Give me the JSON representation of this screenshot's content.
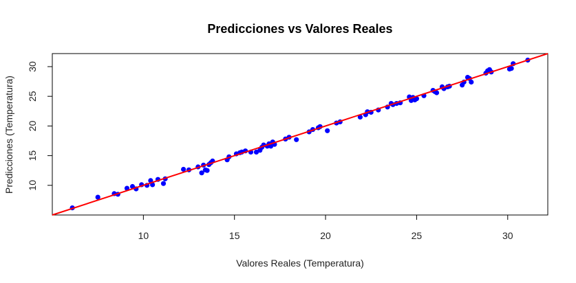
{
  "chart_data": {
    "type": "scatter",
    "title": "Predicciones vs Valores Reales",
    "xlabel": "Valores Reales (Temperatura)",
    "ylabel": "Predicciones (Temperatura)",
    "xlim": [
      5.0,
      32.2
    ],
    "ylim": [
      5.0,
      32.2
    ],
    "x_ticks": [
      "10",
      "15",
      "20",
      "25",
      "30"
    ],
    "y_ticks": [
      "10",
      "15",
      "20",
      "25",
      "30"
    ],
    "grid": false,
    "point_color": "#0000ff",
    "line_color": "#ff0000",
    "reference_line": {
      "type": "identity",
      "intercept": 0,
      "slope": 1
    },
    "points": [
      [
        6.1,
        6.2
      ],
      [
        7.5,
        8.0
      ],
      [
        8.4,
        8.6
      ],
      [
        8.6,
        8.5
      ],
      [
        9.1,
        9.5
      ],
      [
        9.4,
        9.8
      ],
      [
        9.6,
        9.4
      ],
      [
        9.9,
        10.1
      ],
      [
        10.2,
        10.0
      ],
      [
        10.4,
        10.8
      ],
      [
        10.5,
        10.1
      ],
      [
        10.8,
        11.0
      ],
      [
        11.1,
        10.3
      ],
      [
        11.2,
        11.1
      ],
      [
        12.2,
        12.7
      ],
      [
        12.5,
        12.6
      ],
      [
        13.0,
        13.1
      ],
      [
        13.2,
        12.1
      ],
      [
        13.3,
        13.4
      ],
      [
        13.4,
        12.6
      ],
      [
        13.5,
        12.5
      ],
      [
        13.6,
        13.5
      ],
      [
        13.7,
        13.8
      ],
      [
        13.8,
        14.1
      ],
      [
        14.6,
        14.3
      ],
      [
        14.7,
        14.8
      ],
      [
        15.1,
        15.3
      ],
      [
        15.3,
        15.5
      ],
      [
        15.4,
        15.6
      ],
      [
        15.6,
        15.8
      ],
      [
        15.9,
        15.6
      ],
      [
        16.2,
        15.6
      ],
      [
        16.4,
        15.9
      ],
      [
        16.5,
        16.4
      ],
      [
        16.6,
        16.8
      ],
      [
        16.8,
        16.6
      ],
      [
        16.9,
        17.0
      ],
      [
        17.0,
        16.6
      ],
      [
        17.1,
        17.3
      ],
      [
        17.2,
        16.9
      ],
      [
        17.8,
        17.8
      ],
      [
        18.0,
        18.1
      ],
      [
        18.4,
        17.7
      ],
      [
        19.1,
        19.0
      ],
      [
        19.3,
        19.4
      ],
      [
        19.6,
        19.7
      ],
      [
        19.7,
        19.9
      ],
      [
        20.1,
        19.2
      ],
      [
        20.6,
        20.5
      ],
      [
        20.8,
        20.7
      ],
      [
        21.9,
        21.5
      ],
      [
        22.2,
        21.9
      ],
      [
        22.3,
        22.4
      ],
      [
        22.5,
        22.3
      ],
      [
        22.9,
        22.7
      ],
      [
        23.4,
        23.2
      ],
      [
        23.6,
        23.8
      ],
      [
        23.7,
        23.6
      ],
      [
        23.9,
        23.8
      ],
      [
        24.1,
        23.9
      ],
      [
        24.6,
        24.9
      ],
      [
        24.7,
        24.3
      ],
      [
        24.8,
        24.8
      ],
      [
        24.9,
        24.4
      ],
      [
        25.0,
        24.6
      ],
      [
        25.4,
        25.1
      ],
      [
        25.9,
        26.0
      ],
      [
        26.0,
        25.8
      ],
      [
        26.1,
        25.6
      ],
      [
        26.4,
        26.6
      ],
      [
        26.5,
        26.3
      ],
      [
        26.7,
        26.6
      ],
      [
        26.8,
        26.7
      ],
      [
        27.5,
        26.9
      ],
      [
        27.6,
        27.4
      ],
      [
        27.8,
        28.2
      ],
      [
        27.9,
        28.0
      ],
      [
        28.0,
        27.4
      ],
      [
        28.8,
        28.9
      ],
      [
        28.9,
        29.3
      ],
      [
        29.0,
        29.5
      ],
      [
        29.1,
        29.1
      ],
      [
        30.1,
        29.6
      ],
      [
        30.2,
        29.7
      ],
      [
        30.3,
        30.5
      ],
      [
        31.1,
        31.1
      ]
    ]
  }
}
